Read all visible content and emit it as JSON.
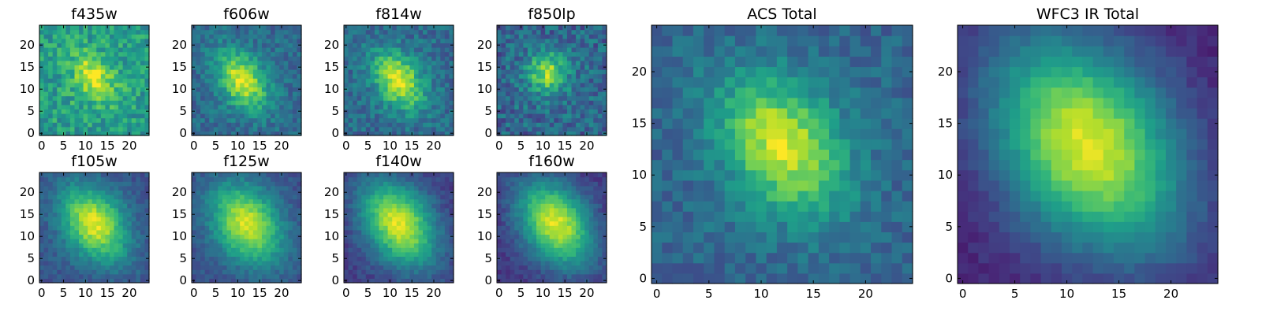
{
  "chart_data": {
    "type": "heatmap",
    "colormap": "viridis",
    "grid_size": 25,
    "axis_range": [
      0,
      24
    ],
    "panels": [
      {
        "id": "f435w",
        "title": "f435w",
        "x_ticks": [
          "0",
          "5",
          "10",
          "15",
          "20"
        ],
        "y_ticks": [
          "0",
          "5",
          "10",
          "15",
          "20"
        ],
        "peak": {
          "x": 12,
          "y": 13
        },
        "spread": [
          2.6,
          4.0
        ],
        "amplitude": 0.35,
        "background": 0.62,
        "noise": 0.3,
        "seed": 11
      },
      {
        "id": "f606w",
        "title": "f606w",
        "x_ticks": [
          "0",
          "5",
          "10",
          "15",
          "20"
        ],
        "y_ticks": [
          "0",
          "5",
          "10",
          "15",
          "20"
        ],
        "peak": {
          "x": 11,
          "y": 12
        },
        "spread": [
          3.2,
          5.0
        ],
        "amplitude": 0.55,
        "background": 0.42,
        "noise": 0.22,
        "seed": 23
      },
      {
        "id": "f814w",
        "title": "f814w",
        "x_ticks": [
          "0",
          "5",
          "10",
          "15",
          "20"
        ],
        "y_ticks": [
          "0",
          "5",
          "10",
          "15",
          "20"
        ],
        "peak": {
          "x": 12,
          "y": 12
        },
        "spread": [
          3.2,
          5.0
        ],
        "amplitude": 0.55,
        "background": 0.42,
        "noise": 0.24,
        "seed": 37
      },
      {
        "id": "f850lp",
        "title": "f850lp",
        "x_ticks": [
          "0",
          "5",
          "10",
          "15",
          "20"
        ],
        "y_ticks": [
          "0",
          "5",
          "10",
          "15",
          "20"
        ],
        "peak": {
          "x": 11,
          "y": 14
        },
        "spread": [
          3.0,
          3.0
        ],
        "amplitude": 0.48,
        "background": 0.4,
        "noise": 0.3,
        "seed": 41
      },
      {
        "id": "f105w",
        "title": "f105w",
        "x_ticks": [
          "0",
          "5",
          "10",
          "15",
          "20"
        ],
        "y_ticks": [
          "0",
          "5",
          "10",
          "15",
          "20"
        ],
        "peak": {
          "x": 12,
          "y": 13
        },
        "spread": [
          4.5,
          6.5
        ],
        "amplitude": 0.62,
        "background": 0.34,
        "noise": 0.14,
        "seed": 53
      },
      {
        "id": "f125w",
        "title": "f125w",
        "x_ticks": [
          "0",
          "5",
          "10",
          "15",
          "20"
        ],
        "y_ticks": [
          "0",
          "5",
          "10",
          "15",
          "20"
        ],
        "peak": {
          "x": 12,
          "y": 13
        },
        "spread": [
          5.0,
          7.0
        ],
        "amplitude": 0.62,
        "background": 0.32,
        "noise": 0.13,
        "seed": 61
      },
      {
        "id": "f140w",
        "title": "f140w",
        "x_ticks": [
          "0",
          "5",
          "10",
          "15",
          "20"
        ],
        "y_ticks": [
          "0",
          "5",
          "10",
          "15",
          "20"
        ],
        "peak": {
          "x": 12,
          "y": 13
        },
        "spread": [
          5.0,
          7.5
        ],
        "amplitude": 0.7,
        "background": 0.26,
        "noise": 0.12,
        "seed": 71
      },
      {
        "id": "f160w",
        "title": "f160w",
        "x_ticks": [
          "0",
          "5",
          "10",
          "15",
          "20"
        ],
        "y_ticks": [
          "0",
          "5",
          "10",
          "15",
          "20"
        ],
        "peak": {
          "x": 13,
          "y": 13
        },
        "spread": [
          5.0,
          7.5
        ],
        "amplitude": 0.72,
        "background": 0.24,
        "noise": 0.12,
        "seed": 83
      },
      {
        "id": "acs-total",
        "title": "ACS Total",
        "x_ticks": [
          "0",
          "5",
          "10",
          "15",
          "20"
        ],
        "y_ticks": [
          "0",
          "5",
          "10",
          "15",
          "20"
        ],
        "peak": {
          "x": 12,
          "y": 13
        },
        "spread": [
          3.5,
          5.0
        ],
        "amplitude": 0.55,
        "background": 0.4,
        "noise": 0.18,
        "seed": 97
      },
      {
        "id": "wfc3-ir-total",
        "title": "WFC3 IR Total",
        "x_ticks": [
          "0",
          "5",
          "10",
          "15",
          "20"
        ],
        "y_ticks": [
          "0",
          "5",
          "10",
          "15",
          "20"
        ],
        "peak": {
          "x": 12,
          "y": 13
        },
        "spread": [
          5.5,
          8.0
        ],
        "amplitude": 0.78,
        "background": 0.18,
        "noise": 0.08,
        "seed": 101
      }
    ]
  }
}
